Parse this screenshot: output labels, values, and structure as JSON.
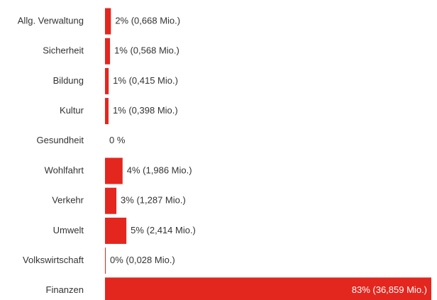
{
  "chart_data": {
    "type": "hbar",
    "categories": [
      "Allg. Verwaltung",
      "Sicherheit",
      "Bildung",
      "Kultur",
      "Gesundheit",
      "Wohlfahrt",
      "Verkehr",
      "Umwelt",
      "Volkswirtschaft",
      "Finanzen"
    ],
    "values": [
      0.668,
      0.568,
      0.415,
      0.398,
      0,
      1.986,
      1.287,
      2.414,
      0.028,
      36.859
    ],
    "value_labels": [
      "2% (0,668 Mio.)",
      "1% (0,568 Mio.)",
      "1% (0,415 Mio.)",
      "1% (0,398 Mio.)",
      "0 %",
      "4% (1,986 Mio.)",
      "3% (1,287 Mio.)",
      "5% (2,414 Mio.)",
      "0% (0,028 Mio.)",
      "83% (36,859 Mio.)"
    ],
    "color": "#e3261e"
  }
}
